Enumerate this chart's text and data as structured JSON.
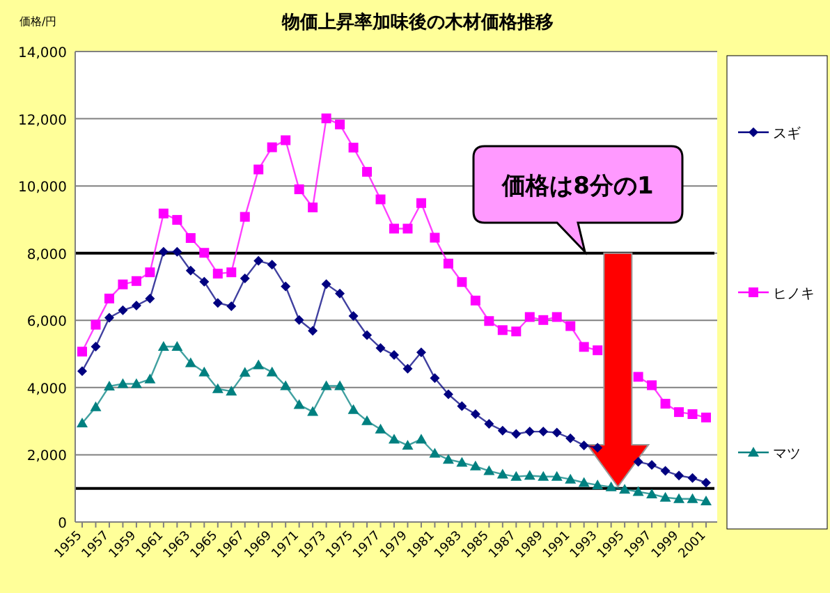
{
  "chart_data": {
    "type": "line",
    "title": "物価上昇率加味後の木材価格推移",
    "ylabel": "価格/円",
    "categories": [
      "1955",
      null,
      "1957",
      null,
      "1959",
      null,
      "1961",
      null,
      "1963",
      null,
      "1965",
      null,
      "1967",
      null,
      "1969",
      null,
      "1971",
      null,
      "1973",
      null,
      "1975",
      null,
      "1977",
      null,
      "1979",
      null,
      "1981",
      null,
      "1983",
      null,
      "1985",
      null,
      "1987",
      null,
      "1989",
      null,
      "1991",
      null,
      "1993",
      null,
      "1995",
      null,
      "1997",
      null,
      "1999",
      null,
      "2001"
    ],
    "series": [
      {
        "name": "スギ",
        "color": "#000080",
        "marker": "diamond",
        "values": [
          4490,
          5220,
          6080,
          6300,
          6440,
          6650,
          8040,
          8040,
          7480,
          7150,
          6520,
          6420,
          7250,
          7770,
          7660,
          7010,
          6010,
          5690,
          7080,
          6800,
          6130,
          5560,
          5180,
          4970,
          4560,
          5050,
          4280,
          3800,
          3450,
          3210,
          2920,
          2720,
          2620,
          2690,
          2690,
          2660,
          2490,
          2280,
          2210,
          null,
          null,
          1790,
          1700,
          1520,
          1380,
          1310,
          1170
        ]
      },
      {
        "name": "ヒノキ",
        "color": "#ff00ff",
        "marker": "square",
        "values": [
          5070,
          5870,
          6650,
          7070,
          7170,
          7430,
          9180,
          8990,
          8450,
          8010,
          7390,
          7430,
          9080,
          10490,
          11150,
          11360,
          9900,
          9360,
          12010,
          11830,
          11140,
          10420,
          9600,
          8730,
          8730,
          9490,
          8460,
          7690,
          7140,
          6590,
          5980,
          5710,
          5670,
          6100,
          6010,
          6100,
          5830,
          5210,
          5110,
          null,
          null,
          4320,
          4070,
          3520,
          3270,
          3210,
          3110
        ]
      },
      {
        "name": "マツ",
        "color": "#008080",
        "marker": "triangle",
        "values": [
          2940,
          3420,
          4040,
          4110,
          4110,
          4250,
          5220,
          5220,
          4730,
          4460,
          3960,
          3890,
          4450,
          4670,
          4460,
          4050,
          3490,
          3280,
          4050,
          4050,
          3340,
          3010,
          2760,
          2460,
          2280,
          2460,
          2040,
          1860,
          1770,
          1660,
          1520,
          1420,
          1350,
          1380,
          1350,
          1350,
          1270,
          1170,
          1100,
          1040,
          970,
          900,
          830,
          730,
          690,
          690,
          620
        ]
      }
    ],
    "ylim": [
      0,
      14000
    ],
    "yticks": [
      {
        "value": 0,
        "label": "0"
      },
      {
        "value": 2000,
        "label": "2,000"
      },
      {
        "value": 4000,
        "label": "4,000"
      },
      {
        "value": 6000,
        "label": "6,000"
      },
      {
        "value": 8000,
        "label": "8,000"
      },
      {
        "value": 10000,
        "label": "10,000"
      },
      {
        "value": 12000,
        "label": "12,000"
      },
      {
        "value": 14000,
        "label": "14,000"
      }
    ],
    "grid": "y",
    "legend": "right",
    "ref_lines": [
      {
        "axis": "y",
        "value": 8000,
        "color": "#000000"
      },
      {
        "axis": "y",
        "value": 1000,
        "color": "#000000"
      }
    ],
    "annotations": [
      "価格は8分の1"
    ]
  }
}
